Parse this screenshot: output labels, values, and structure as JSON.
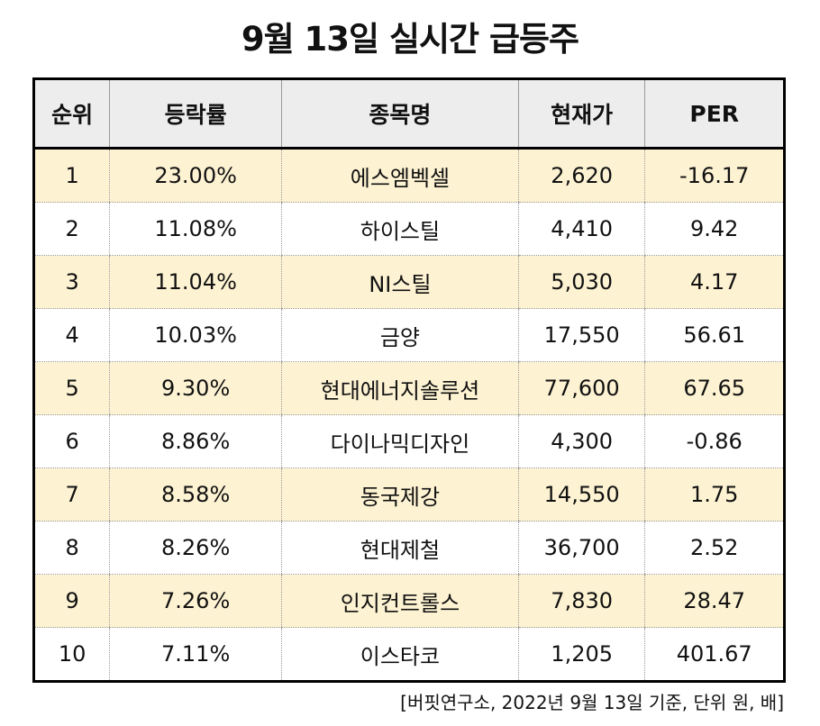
{
  "title": "9월 13일 실시간 급등주",
  "table": {
    "headers": [
      "순위",
      "등락률",
      "종목명",
      "현재가",
      "PER"
    ],
    "rows": [
      [
        "1",
        "23.00%",
        "에스엠벡셀",
        "2,620",
        "-16.17"
      ],
      [
        "2",
        "11.08%",
        "하이스틸",
        "4,410",
        "9.42"
      ],
      [
        "3",
        "11.04%",
        "NI스틸",
        "5,030",
        "4.17"
      ],
      [
        "4",
        "10.03%",
        "금양",
        "17,550",
        "56.61"
      ],
      [
        "5",
        "9.30%",
        "현대에너지솔루션",
        "77,600",
        "67.65"
      ],
      [
        "6",
        "8.86%",
        "다이나믹디자인",
        "4,300",
        "-0.86"
      ],
      [
        "7",
        "8.58%",
        "동국제강",
        "14,550",
        "1.75"
      ],
      [
        "8",
        "8.26%",
        "현대제철",
        "36,700",
        "2.52"
      ],
      [
        "9",
        "7.26%",
        "인지컨트롤스",
        "7,830",
        "28.47"
      ],
      [
        "10",
        "7.11%",
        "이스타코",
        "1,205",
        "401.67"
      ]
    ]
  },
  "footnote": "[버핏연구소, 2022년 9월 13일 기준, 단위 원, 배]",
  "colors": {
    "highlight_row": "#fdf2d2",
    "header_bg": "#ededed",
    "border": "#000000"
  }
}
